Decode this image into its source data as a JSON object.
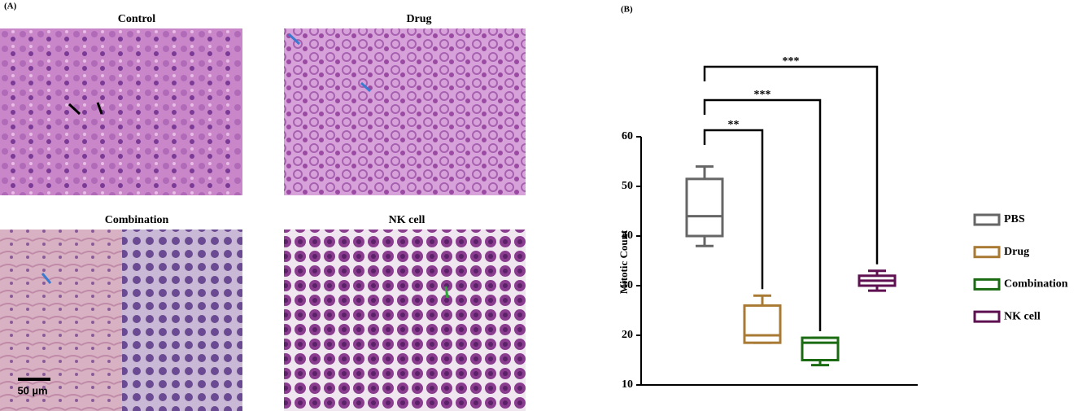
{
  "panel_a": {
    "label": "(A)",
    "images": [
      {
        "title": "Control"
      },
      {
        "title": "Drug"
      },
      {
        "title": "Combination"
      },
      {
        "title": "NK cell"
      }
    ],
    "scale_bar": "50 µm"
  },
  "chart_data": {
    "type": "box",
    "label": "(B)",
    "y_label": "Mitotic Count",
    "boxes": [
      {
        "name": "PBS",
        "color": "#666666",
        "min": 38,
        "q1": 40,
        "median": 44,
        "q3": 51.5,
        "max": 54
      },
      {
        "name": "Drug",
        "color": "#a97a34",
        "min": 18.5,
        "q1": 18.5,
        "median": 20,
        "q3": 26,
        "max": 28
      },
      {
        "name": "Combination",
        "color": "#1a6b12",
        "min": 14,
        "q1": 15,
        "median": 18.5,
        "q3": 19.5,
        "max": 19.5
      },
      {
        "name": "NK cell",
        "color": "#5e1050",
        "min": 29,
        "q1": 30,
        "median": 31,
        "q3": 32,
        "max": 33
      }
    ],
    "ylim": [
      10,
      60
    ],
    "yticks": [
      10,
      20,
      30,
      40,
      50,
      60
    ],
    "annotations": [
      {
        "from": 0,
        "to": 1,
        "label": "**"
      },
      {
        "from": 0,
        "to": 2,
        "label": "***"
      },
      {
        "from": 0,
        "to": 3,
        "label": "***"
      }
    ]
  }
}
